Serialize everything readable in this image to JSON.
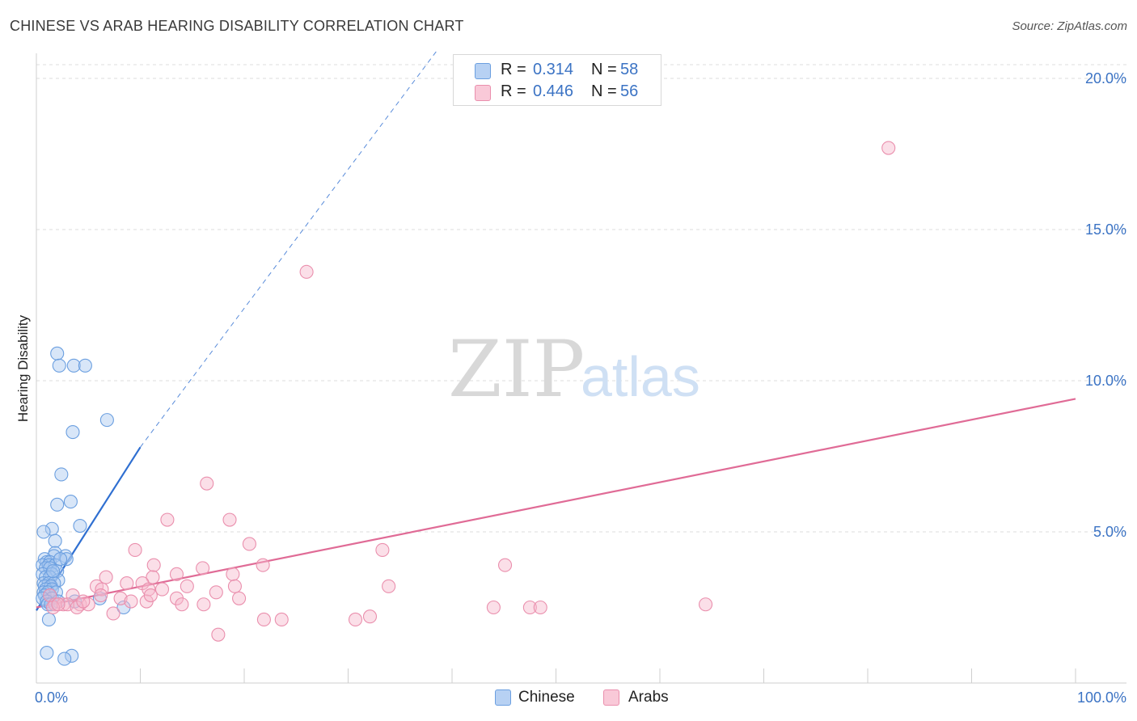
{
  "title": "CHINESE VS ARAB HEARING DISABILITY CORRELATION CHART",
  "source": "Source: ZipAtlas.com",
  "watermark": {
    "zip": "ZIP",
    "atlas": "atlas"
  },
  "colors": {
    "chinese_fill": "#a9c8f0",
    "chinese_stroke": "#6b9fe0",
    "chinese_line": "#2f6fd1",
    "arabs_fill": "#f7b8cc",
    "arabs_stroke": "#ea8fad",
    "arabs_line": "#e06b96",
    "grid": "#dedede",
    "tick_text": "#3b73c4"
  },
  "legend": {
    "rows": [
      {
        "series": "Chinese",
        "r_label": "R =",
        "r_value": "0.314",
        "n_label": "N =",
        "n_value": "58"
      },
      {
        "series": "Arabs",
        "r_label": "R =",
        "r_value": "0.446",
        "n_label": "N =",
        "n_value": "56"
      }
    ],
    "bottom": [
      "Chinese",
      "Arabs"
    ]
  },
  "chart_data": {
    "type": "scatter",
    "title": "CHINESE VS ARAB HEARING DISABILITY CORRELATION CHART",
    "xlabel": "",
    "ylabel": "Hearing Disability",
    "xlim": [
      0,
      100
    ],
    "ylim": [
      0,
      20
    ],
    "x_tick_labels": [
      "0.0%",
      "100.0%"
    ],
    "y_ticks": [
      5,
      10,
      15,
      20
    ],
    "y_tick_labels": [
      "5.0%",
      "10.0%",
      "15.0%",
      "20.0%"
    ],
    "grid": true,
    "legend_position": "top-center",
    "series": [
      {
        "name": "Chinese",
        "points": [
          [
            2.0,
            10.9
          ],
          [
            2.2,
            10.5
          ],
          [
            3.6,
            10.5
          ],
          [
            4.7,
            10.5
          ],
          [
            6.8,
            8.7
          ],
          [
            3.5,
            8.3
          ],
          [
            2.4,
            6.9
          ],
          [
            3.3,
            6.0
          ],
          [
            2.0,
            5.9
          ],
          [
            1.5,
            5.1
          ],
          [
            0.7,
            5.0
          ],
          [
            4.2,
            5.2
          ],
          [
            1.8,
            4.7
          ],
          [
            1.8,
            4.3
          ],
          [
            2.8,
            4.2
          ],
          [
            2.9,
            4.1
          ],
          [
            1.7,
            4.2
          ],
          [
            0.8,
            4.1
          ],
          [
            1.0,
            4.0
          ],
          [
            1.3,
            4.0
          ],
          [
            0.6,
            3.9
          ],
          [
            1.2,
            3.9
          ],
          [
            1.8,
            3.9
          ],
          [
            0.9,
            3.8
          ],
          [
            1.3,
            3.8
          ],
          [
            2.0,
            3.7
          ],
          [
            0.6,
            3.6
          ],
          [
            1.5,
            3.6
          ],
          [
            0.9,
            3.5
          ],
          [
            1.3,
            3.5
          ],
          [
            2.1,
            3.4
          ],
          [
            0.7,
            3.3
          ],
          [
            1.2,
            3.3
          ],
          [
            1.7,
            3.3
          ],
          [
            0.8,
            3.2
          ],
          [
            1.4,
            3.2
          ],
          [
            0.9,
            3.1
          ],
          [
            1.5,
            3.1
          ],
          [
            0.7,
            3.0
          ],
          [
            1.1,
            3.0
          ],
          [
            1.9,
            3.0
          ],
          [
            0.8,
            2.9
          ],
          [
            1.3,
            2.9
          ],
          [
            1.5,
            2.8
          ],
          [
            0.6,
            2.8
          ],
          [
            1.0,
            2.7
          ],
          [
            2.1,
            2.7
          ],
          [
            3.7,
            2.7
          ],
          [
            6.1,
            2.8
          ],
          [
            1.1,
            2.6
          ],
          [
            1.4,
            2.6
          ],
          [
            8.4,
            2.5
          ],
          [
            1.2,
            2.1
          ],
          [
            1.0,
            1.0
          ],
          [
            3.4,
            0.9
          ],
          [
            2.7,
            0.8
          ],
          [
            1.6,
            3.7
          ],
          [
            2.3,
            4.1
          ]
        ]
      },
      {
        "name": "Arabs",
        "points": [
          [
            82.0,
            17.7
          ],
          [
            26.0,
            13.6
          ],
          [
            16.4,
            6.6
          ],
          [
            12.6,
            5.4
          ],
          [
            18.6,
            5.4
          ],
          [
            20.5,
            4.6
          ],
          [
            9.5,
            4.4
          ],
          [
            33.3,
            4.4
          ],
          [
            11.3,
            3.9
          ],
          [
            21.8,
            3.9
          ],
          [
            45.1,
            3.9
          ],
          [
            16.0,
            3.8
          ],
          [
            13.5,
            3.6
          ],
          [
            18.9,
            3.6
          ],
          [
            11.2,
            3.5
          ],
          [
            6.7,
            3.5
          ],
          [
            8.7,
            3.3
          ],
          [
            10.2,
            3.3
          ],
          [
            14.5,
            3.2
          ],
          [
            5.8,
            3.2
          ],
          [
            19.1,
            3.2
          ],
          [
            33.9,
            3.2
          ],
          [
            6.3,
            3.1
          ],
          [
            10.8,
            3.1
          ],
          [
            12.1,
            3.1
          ],
          [
            17.3,
            3.0
          ],
          [
            1.3,
            2.9
          ],
          [
            3.5,
            2.9
          ],
          [
            6.2,
            2.9
          ],
          [
            8.1,
            2.8
          ],
          [
            13.5,
            2.8
          ],
          [
            9.1,
            2.7
          ],
          [
            10.6,
            2.7
          ],
          [
            1.8,
            2.6
          ],
          [
            2.6,
            2.6
          ],
          [
            3.0,
            2.6
          ],
          [
            4.2,
            2.6
          ],
          [
            5.0,
            2.6
          ],
          [
            14.0,
            2.6
          ],
          [
            16.1,
            2.6
          ],
          [
            44.0,
            2.5
          ],
          [
            47.5,
            2.5
          ],
          [
            48.5,
            2.5
          ],
          [
            64.4,
            2.6
          ],
          [
            1.6,
            2.5
          ],
          [
            3.9,
            2.5
          ],
          [
            7.4,
            2.3
          ],
          [
            21.9,
            2.1
          ],
          [
            23.6,
            2.1
          ],
          [
            30.7,
            2.1
          ],
          [
            32.1,
            2.2
          ],
          [
            17.5,
            1.6
          ],
          [
            2.1,
            2.6
          ],
          [
            4.5,
            2.7
          ],
          [
            11.0,
            2.9
          ],
          [
            19.5,
            2.8
          ]
        ]
      }
    ],
    "trend_lines": [
      {
        "series": "Chinese",
        "solid": [
          [
            0,
            2.4
          ],
          [
            10,
            7.8
          ]
        ],
        "dashed": [
          [
            10,
            7.8
          ],
          [
            38.5,
            20.9
          ]
        ]
      },
      {
        "series": "Arabs",
        "solid": [
          [
            0,
            2.5
          ],
          [
            100,
            9.4
          ]
        ]
      }
    ]
  }
}
